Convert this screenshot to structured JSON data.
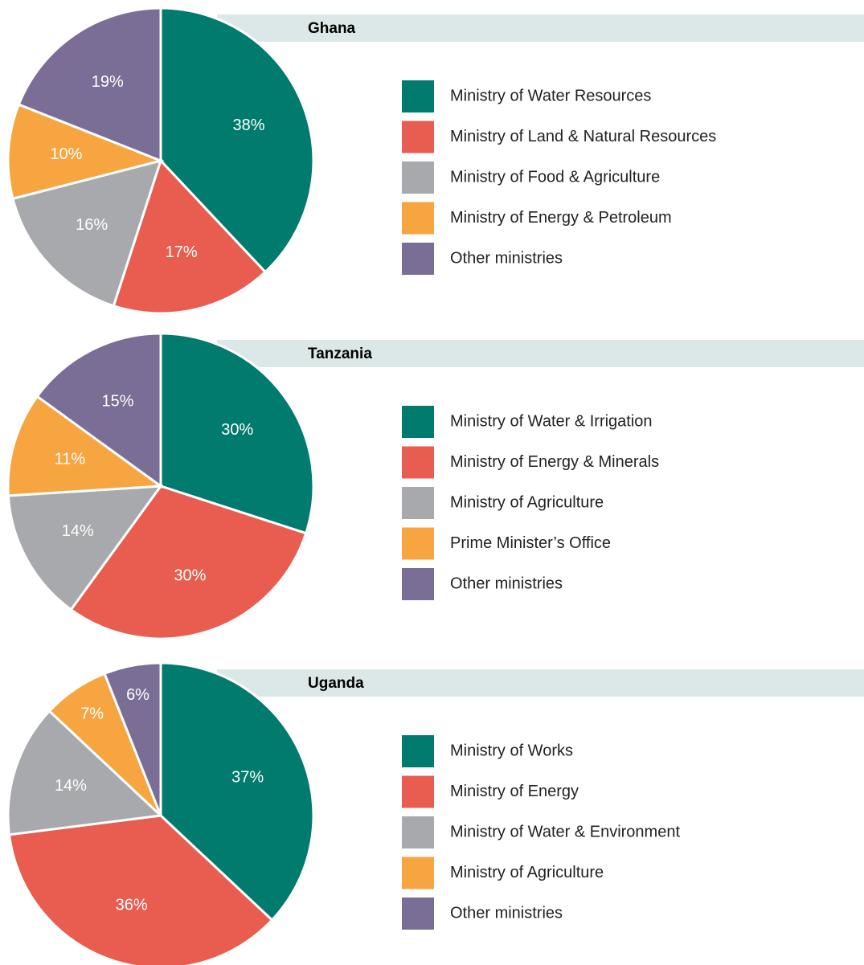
{
  "chart_data": [
    {
      "type": "pie",
      "title": "Ghana",
      "categories": [
        "Ministry of Water Resources",
        "Ministry of Land & Natural Resources",
        "Ministry of Food & Agriculture",
        "Ministry of Energy & Petroleum",
        "Other ministries"
      ],
      "values": [
        38,
        17,
        16,
        10,
        19
      ],
      "value_labels": [
        "38%",
        "17%",
        "16%",
        "10%",
        "19%"
      ],
      "colors": [
        "#007b6e",
        "#e85d50",
        "#a7a9ac",
        "#f7a541",
        "#7b6e96"
      ]
    },
    {
      "type": "pie",
      "title": "Tanzania",
      "categories": [
        "Ministry of Water & Irrigation",
        "Ministry of Energy & Minerals",
        "Ministry of Agriculture",
        "Prime Minister’s Office",
        "Other ministries"
      ],
      "values": [
        30,
        30,
        14,
        11,
        15
      ],
      "value_labels": [
        "30%",
        "30%",
        "14%",
        "11%",
        "15%"
      ],
      "colors": [
        "#007b6e",
        "#e85d50",
        "#a7a9ac",
        "#f7a541",
        "#7b6e96"
      ]
    },
    {
      "type": "pie",
      "title": "Uganda",
      "categories": [
        "Ministry of Works",
        "Ministry of Energy",
        "Ministry of Water & Environment",
        "Ministry of Agriculture",
        "Other ministries"
      ],
      "values": [
        37,
        36,
        14,
        7,
        6
      ],
      "value_labels": [
        "37%",
        "36%",
        "14%",
        "7%",
        "6%"
      ],
      "colors": [
        "#007b6e",
        "#e85d50",
        "#a7a9ac",
        "#f7a541",
        "#7b6e96"
      ]
    }
  ]
}
